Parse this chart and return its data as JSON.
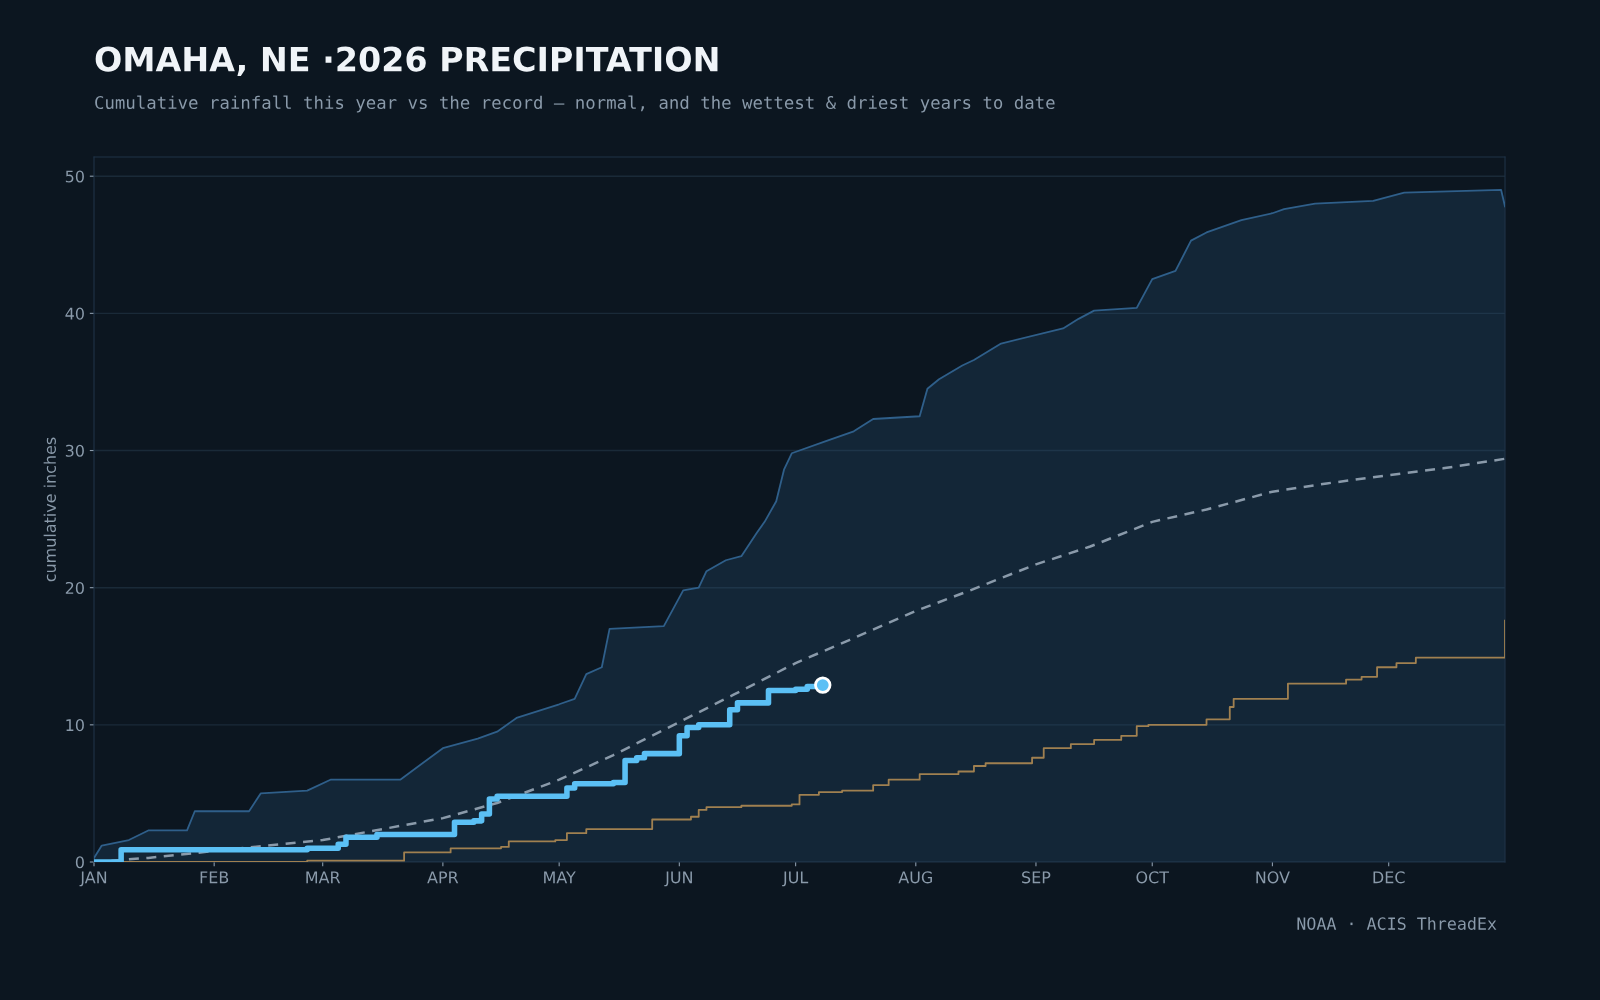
{
  "chart_data": {
    "type": "line",
    "title": "OMAHA, NE ·2026 PRECIPITATION",
    "subtitle": "Cumulative rainfall this year vs the record — normal, and the wettest & driest years to date",
    "ylabel": "cumulative inches",
    "annotations": [
      "NOAA · ACIS ThreadEx"
    ],
    "xlim": [
      "2026-01-01",
      "2026-12-31"
    ],
    "ylim": [
      0,
      51.4
    ],
    "yticks": [
      0,
      10,
      20,
      30,
      40,
      50
    ],
    "xticks": [
      {
        "value": "2026-01-01",
        "label": "JAN"
      },
      {
        "value": "2026-02-01",
        "label": "FEB"
      },
      {
        "value": "2026-03-01",
        "label": "MAR"
      },
      {
        "value": "2026-04-01",
        "label": "APR"
      },
      {
        "value": "2026-05-01",
        "label": "MAY"
      },
      {
        "value": "2026-06-01",
        "label": "JUN"
      },
      {
        "value": "2026-07-01",
        "label": "JUL"
      },
      {
        "value": "2026-08-01",
        "label": "AUG"
      },
      {
        "value": "2026-09-01",
        "label": "SEP"
      },
      {
        "value": "2026-10-01",
        "label": "OCT"
      },
      {
        "value": "2026-11-01",
        "label": "NOV"
      },
      {
        "value": "2026-12-01",
        "label": "DEC"
      }
    ],
    "grid": "y",
    "series": [
      {
        "type": "step",
        "color": "#a08050",
        "x": [
          "2026-01-01",
          "2026-02-25",
          "2026-03-22",
          "2026-04-03",
          "2026-04-16",
          "2026-04-18",
          "2026-04-30",
          "2026-05-03",
          "2026-05-08",
          "2026-05-25",
          "2026-06-04",
          "2026-06-06",
          "2026-06-08",
          "2026-06-17",
          "2026-06-30",
          "2026-07-02",
          "2026-07-07",
          "2026-07-13",
          "2026-07-21",
          "2026-07-25",
          "2026-08-02",
          "2026-08-12",
          "2026-08-16",
          "2026-08-19",
          "2026-08-31",
          "2026-09-03",
          "2026-09-10",
          "2026-09-16",
          "2026-09-23",
          "2026-09-27",
          "2026-09-30",
          "2026-10-15",
          "2026-10-21",
          "2026-10-22",
          "2026-11-05",
          "2026-11-20",
          "2026-11-24",
          "2026-11-28",
          "2026-12-03",
          "2026-12-08",
          "2026-12-30",
          "2026-12-31"
        ],
        "values": [
          0,
          0.1,
          0.7,
          1.0,
          1.1,
          1.5,
          1.6,
          2.1,
          2.4,
          3.1,
          3.3,
          3.8,
          4.0,
          4.1,
          4.2,
          4.9,
          5.1,
          5.2,
          5.6,
          6.0,
          6.4,
          6.6,
          7.0,
          7.2,
          7.6,
          8.3,
          8.6,
          8.9,
          9.2,
          9.9,
          10.0,
          10.4,
          11.3,
          11.9,
          13.0,
          13.3,
          13.5,
          14.2,
          14.5,
          14.9,
          14.9,
          17.6
        ]
      },
      {
        "type": "area",
        "color": "#2f5f8a",
        "x": [
          "2026-01-01",
          "2026-01-03",
          "2026-01-10",
          "2026-01-15",
          "2026-01-25",
          "2026-01-27",
          "2026-02-10",
          "2026-02-13",
          "2026-02-25",
          "2026-03-03",
          "2026-03-21",
          "2026-04-01",
          "2026-04-10",
          "2026-04-15",
          "2026-04-20",
          "2026-05-01",
          "2026-05-05",
          "2026-05-08",
          "2026-05-12",
          "2026-05-14",
          "2026-05-28",
          "2026-06-02",
          "2026-06-06",
          "2026-06-08",
          "2026-06-13",
          "2026-06-17",
          "2026-06-21",
          "2026-06-23",
          "2026-06-26",
          "2026-06-28",
          "2026-06-30",
          "2026-07-09",
          "2026-07-16",
          "2026-07-21",
          "2026-08-02",
          "2026-08-04",
          "2026-08-07",
          "2026-08-13",
          "2026-08-16",
          "2026-08-23",
          "2026-09-08",
          "2026-09-12",
          "2026-09-16",
          "2026-09-27",
          "2026-10-01",
          "2026-10-07",
          "2026-10-11",
          "2026-10-15",
          "2026-10-24",
          "2026-11-01",
          "2026-11-04",
          "2026-11-12",
          "2026-11-27",
          "2026-12-05",
          "2026-12-30",
          "2026-12-31"
        ],
        "values": [
          0.3,
          1.2,
          1.6,
          2.3,
          2.3,
          3.7,
          3.7,
          5.0,
          5.2,
          6.0,
          6.0,
          8.3,
          9.0,
          9.5,
          10.5,
          11.5,
          11.9,
          13.7,
          14.2,
          17.0,
          17.2,
          19.8,
          20.0,
          21.2,
          22.0,
          22.3,
          24.0,
          24.8,
          26.3,
          28.6,
          29.8,
          30.7,
          31.4,
          32.3,
          32.5,
          34.5,
          35.2,
          36.2,
          36.6,
          37.8,
          38.9,
          39.6,
          40.2,
          40.4,
          42.5,
          43.1,
          45.3,
          45.9,
          46.8,
          47.3,
          47.6,
          48.0,
          48.2,
          48.8,
          49.0,
          47.8
        ]
      },
      {
        "type": "line",
        "color": "#8a9aaa",
        "line_style": "dashed",
        "x": [
          "2026-01-01",
          "2026-01-15",
          "2026-02-01",
          "2026-03-01",
          "2026-04-01",
          "2026-04-15",
          "2026-05-01",
          "2026-05-15",
          "2026-06-01",
          "2026-06-15",
          "2026-07-01",
          "2026-07-15",
          "2026-08-01",
          "2026-08-15",
          "2026-09-01",
          "2026-09-15",
          "2026-10-01",
          "2026-10-15",
          "2026-11-01",
          "2026-11-15",
          "2026-12-01",
          "2026-12-15",
          "2026-12-31"
        ],
        "values": [
          0,
          0.3,
          0.8,
          1.6,
          3.2,
          4.3,
          6.0,
          7.8,
          10.2,
          12.2,
          14.5,
          16.2,
          18.3,
          19.8,
          21.7,
          23.0,
          24.8,
          25.7,
          27.0,
          27.6,
          28.2,
          28.7,
          29.4
        ]
      },
      {
        "type": "step",
        "color": "#5bc0f5",
        "x": [
          "2026-01-01",
          "2026-01-07",
          "2026-01-08",
          "2026-02-25",
          "2026-03-05",
          "2026-03-07",
          "2026-03-15",
          "2026-04-01",
          "2026-04-04",
          "2026-04-09",
          "2026-04-11",
          "2026-04-13",
          "2026-04-15",
          "2026-04-30",
          "2026-05-03",
          "2026-05-05",
          "2026-05-14",
          "2026-05-15",
          "2026-05-18",
          "2026-05-21",
          "2026-05-23",
          "2026-05-31",
          "2026-06-01",
          "2026-06-03",
          "2026-06-06",
          "2026-06-12",
          "2026-06-14",
          "2026-06-16",
          "2026-06-22",
          "2026-06-24",
          "2026-07-01",
          "2026-07-04",
          "2026-07-08"
        ],
        "values": [
          0,
          0,
          0.9,
          1.0,
          1.3,
          1.8,
          2.0,
          2.0,
          2.9,
          3.0,
          3.5,
          4.6,
          4.8,
          4.8,
          5.4,
          5.7,
          5.7,
          5.8,
          7.4,
          7.6,
          7.9,
          7.9,
          9.2,
          9.8,
          10.0,
          10.0,
          11.1,
          11.6,
          11.6,
          12.5,
          12.6,
          12.8,
          12.9
        ]
      },
      {
        "type": "scatter",
        "color": "#5bc0f5",
        "marker": "circle",
        "x": [
          "2026-07-08"
        ],
        "values": [
          12.9
        ]
      }
    ]
  }
}
